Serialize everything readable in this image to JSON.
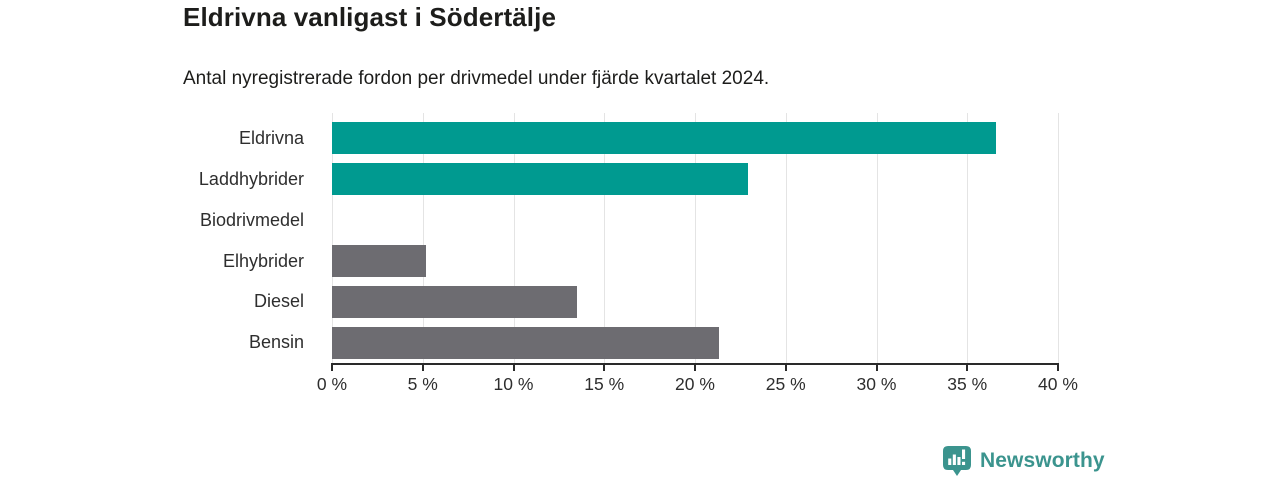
{
  "header": {
    "title": "Eldrivna vanligast i Södertälje",
    "subtitle": "Antal nyregistrerade fordon per drivmedel under fjärde kvartalet 2024."
  },
  "chart_data": {
    "type": "bar",
    "orientation": "horizontal",
    "title": "Eldrivna vanligast i Södertälje",
    "subtitle": "Antal nyregistrerade fordon per drivmedel under fjärde kvartalet 2024.",
    "categories": [
      "Eldrivna",
      "Laddhybrider",
      "Biodrivmedel",
      "Elhybrider",
      "Diesel",
      "Bensin"
    ],
    "values": [
      36.6,
      22.9,
      0,
      5.2,
      13.5,
      21.3
    ],
    "unit": "%",
    "bar_colors": [
      "#009a90",
      "#009a90",
      "#6d6c71",
      "#6d6c71",
      "#6d6c71",
      "#6d6c71"
    ],
    "highlighted_categories": [
      "Eldrivna",
      "Laddhybrider"
    ],
    "xlim": [
      0,
      40
    ],
    "x_tick_values": [
      0,
      5,
      10,
      15,
      20,
      25,
      30,
      35,
      40
    ],
    "x_tick_labels": [
      "0 %",
      "5 %",
      "10 %",
      "15 %",
      "20 %",
      "25 %",
      "30 %",
      "35 %",
      "40 %"
    ],
    "xlabel": "",
    "ylabel": "",
    "grid": true,
    "legend": false
  },
  "footer": {
    "brand_name": "Newsworthy",
    "logo_icon": "bar-chart-speech-bubble-icon"
  },
  "colors": {
    "bar_highlight": "#009a90",
    "bar_default": "#6d6c71",
    "grid_line": "#e4e4e4",
    "axis_line": "#2a2a2a",
    "text_dark": "#1d1d1b",
    "text_label": "#2e2e2e",
    "brand_color": "#3b948e"
  }
}
